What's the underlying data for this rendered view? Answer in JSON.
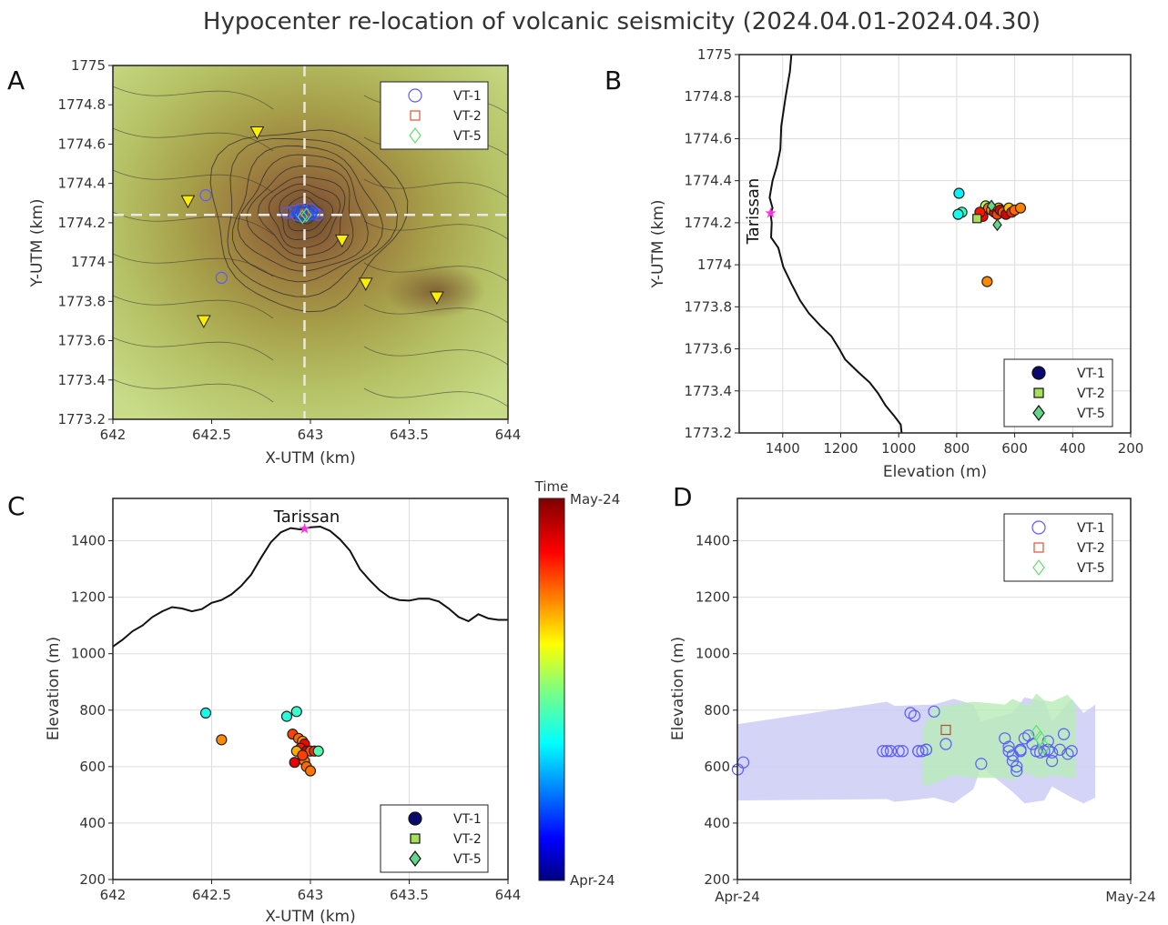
{
  "title": "Hypocenter re-location of volcanic seismicity (2024.04.01-2024.04.30)",
  "colors": {
    "vt1_open": "#5a5aff",
    "vt2_open": "#e0503a",
    "vt5_open": "#63e06b",
    "vt1_fill": "#0a0a6e",
    "vt2_fill": "#a6e05a",
    "vt5_fill": "#63d68a",
    "station": "#ffee00",
    "summit": "#ff33dd",
    "band_vt1": "#c9c9f5",
    "band_vt5": "#b8ebb8"
  },
  "colorbar": {
    "title": "Time",
    "top_label": "May-24",
    "bottom_label": "Apr-24"
  },
  "chart_data": [
    {
      "panel": "A",
      "type": "scatter",
      "background": "shaded relief topographic map with contour lines",
      "xlabel": "X-UTM (km)",
      "ylabel": "Y-UTM (km)",
      "xlim": [
        642,
        644
      ],
      "ylim": [
        1773.2,
        1775
      ],
      "xticks": [
        "642",
        "642.5",
        "643",
        "643.5",
        "644"
      ],
      "yticks": [
        "1773.2",
        "1773.4",
        "1773.6",
        "1773.8",
        "1774",
        "1774.2",
        "1774.4",
        "1774.6",
        "1774.8",
        "1775"
      ],
      "crosshair": {
        "x": 642.97,
        "y": 1774.24
      },
      "legend": [
        "VT-1",
        "VT-2",
        "VT-5"
      ],
      "stations": [
        [
          642.73,
          1774.66
        ],
        [
          642.38,
          1774.31
        ],
        [
          643.16,
          1774.11
        ],
        [
          643.28,
          1773.89
        ],
        [
          643.64,
          1773.82
        ],
        [
          642.46,
          1773.7
        ]
      ],
      "series": [
        {
          "name": "VT-1",
          "x": [
            642.47,
            642.55,
            642.88,
            642.91,
            642.93,
            642.95,
            642.96,
            642.97,
            642.98,
            642.99,
            643.0,
            643.02,
            643.04
          ],
          "y": [
            1774.34,
            1773.92,
            1774.25,
            1774.26,
            1774.24,
            1774.27,
            1774.23,
            1774.26,
            1774.25,
            1774.24,
            1774.27,
            1774.25,
            1774.24
          ]
        },
        {
          "name": "VT-2",
          "x": [
            642.97
          ],
          "y": [
            1774.25
          ]
        },
        {
          "name": "VT-5",
          "x": [
            642.96,
            642.98
          ],
          "y": [
            1774.23,
            1774.24
          ]
        }
      ]
    },
    {
      "panel": "B",
      "type": "scatter",
      "xlabel": "Elevation (m)",
      "ylabel": "Y-UTM (km)",
      "xlim": [
        1550,
        200
      ],
      "ylim": [
        1773.2,
        1775
      ],
      "xticks": [
        "1400",
        "1200",
        "1000",
        "800",
        "600",
        "400",
        "200"
      ],
      "yticks": [
        "1773.2",
        "1773.4",
        "1773.6",
        "1773.8",
        "1774",
        "1774.2",
        "1774.4",
        "1774.6",
        "1774.8",
        "1775"
      ],
      "annotation": "Tarissan",
      "summit": {
        "elev": 1442,
        "y": 1774.245
      },
      "legend": [
        "VT-1",
        "VT-2",
        "VT-5"
      ],
      "profile": [
        [
          1370,
          1775.0
        ],
        [
          1375,
          1774.92
        ],
        [
          1390,
          1774.8
        ],
        [
          1405,
          1774.66
        ],
        [
          1408,
          1774.55
        ],
        [
          1420,
          1774.47
        ],
        [
          1435,
          1774.4
        ],
        [
          1445,
          1774.32
        ],
        [
          1435,
          1774.27
        ],
        [
          1442,
          1774.245
        ],
        [
          1438,
          1774.2
        ],
        [
          1440,
          1774.13
        ],
        [
          1415,
          1774.08
        ],
        [
          1398,
          1773.99
        ],
        [
          1370,
          1773.91
        ],
        [
          1340,
          1773.83
        ],
        [
          1310,
          1773.77
        ],
        [
          1270,
          1773.71
        ],
        [
          1232,
          1773.66
        ],
        [
          1205,
          1773.6
        ],
        [
          1185,
          1773.55
        ],
        [
          1140,
          1773.49
        ],
        [
          1100,
          1773.44
        ],
        [
          1072,
          1773.39
        ],
        [
          1045,
          1773.33
        ],
        [
          1015,
          1773.28
        ],
        [
          993,
          1773.24
        ],
        [
          990,
          1773.2
        ]
      ],
      "points": [
        {
          "elev": 792,
          "y": 1774.34,
          "t": 0.35
        },
        {
          "elev": 782,
          "y": 1774.25,
          "t": 0.42
        },
        {
          "elev": 795,
          "y": 1774.24,
          "t": 0.38
        },
        {
          "elev": 700,
          "y": 1774.28,
          "t": 0.55
        },
        {
          "elev": 690,
          "y": 1774.27,
          "t": 0.75
        },
        {
          "elev": 680,
          "y": 1774.26,
          "t": 0.72
        },
        {
          "elev": 670,
          "y": 1774.25,
          "t": 0.85
        },
        {
          "elev": 660,
          "y": 1774.24,
          "t": 0.8
        },
        {
          "elev": 655,
          "y": 1774.27,
          "t": 0.7
        },
        {
          "elev": 650,
          "y": 1774.26,
          "t": 0.88
        },
        {
          "elev": 640,
          "y": 1774.25,
          "t": 0.78
        },
        {
          "elev": 630,
          "y": 1774.24,
          "t": 0.9
        },
        {
          "elev": 620,
          "y": 1774.27,
          "t": 0.68
        },
        {
          "elev": 610,
          "y": 1774.25,
          "t": 0.82
        },
        {
          "elev": 600,
          "y": 1774.26,
          "t": 0.76
        },
        {
          "elev": 580,
          "y": 1774.27,
          "t": 0.74
        },
        {
          "elev": 710,
          "y": 1774.23,
          "t": 0.86
        },
        {
          "elev": 720,
          "y": 1774.25,
          "t": 0.84
        },
        {
          "elev": 695,
          "y": 1773.92,
          "t": 0.73
        }
      ],
      "vt2_points": [
        {
          "elev": 730,
          "y": 1774.22
        }
      ],
      "vt5_points": [
        {
          "elev": 660,
          "y": 1774.19
        },
        {
          "elev": 680,
          "y": 1774.28
        }
      ]
    },
    {
      "panel": "C",
      "type": "scatter",
      "xlabel": "X-UTM (km)",
      "ylabel": "Elevation (m)",
      "xlim": [
        642,
        644
      ],
      "ylim": [
        200,
        1550
      ],
      "xticks": [
        "642",
        "642.5",
        "643",
        "643.5",
        "644"
      ],
      "yticks": [
        "200",
        "400",
        "600",
        "800",
        "1000",
        "1200",
        "1400"
      ],
      "annotation": "Tarissan",
      "summit": {
        "x": 642.97,
        "elev": 1442
      },
      "legend": [
        "VT-1",
        "VT-2",
        "VT-5"
      ],
      "profile": [
        [
          642.0,
          1025
        ],
        [
          642.05,
          1050
        ],
        [
          642.1,
          1080
        ],
        [
          642.15,
          1100
        ],
        [
          642.2,
          1130
        ],
        [
          642.25,
          1150
        ],
        [
          642.3,
          1165
        ],
        [
          642.35,
          1160
        ],
        [
          642.4,
          1150
        ],
        [
          642.45,
          1158
        ],
        [
          642.5,
          1180
        ],
        [
          642.55,
          1190
        ],
        [
          642.6,
          1210
        ],
        [
          642.65,
          1240
        ],
        [
          642.7,
          1280
        ],
        [
          642.75,
          1340
        ],
        [
          642.8,
          1395
        ],
        [
          642.85,
          1430
        ],
        [
          642.9,
          1445
        ],
        [
          642.95,
          1440
        ],
        [
          643.0,
          1448
        ],
        [
          643.05,
          1450
        ],
        [
          643.1,
          1435
        ],
        [
          643.15,
          1405
        ],
        [
          643.2,
          1365
        ],
        [
          643.25,
          1300
        ],
        [
          643.3,
          1260
        ],
        [
          643.35,
          1225
        ],
        [
          643.4,
          1200
        ],
        [
          643.45,
          1190
        ],
        [
          643.5,
          1188
        ],
        [
          643.55,
          1195
        ],
        [
          643.6,
          1195
        ],
        [
          643.65,
          1185
        ],
        [
          643.7,
          1160
        ],
        [
          643.75,
          1130
        ],
        [
          643.8,
          1115
        ],
        [
          643.85,
          1140
        ],
        [
          643.9,
          1125
        ],
        [
          643.95,
          1120
        ],
        [
          644.0,
          1120
        ]
      ],
      "points": [
        {
          "x": 642.47,
          "elev": 790,
          "t": 0.38
        },
        {
          "x": 642.55,
          "elev": 695,
          "t": 0.73
        },
        {
          "x": 642.88,
          "elev": 778,
          "t": 0.4
        },
        {
          "x": 642.93,
          "elev": 795,
          "t": 0.42
        },
        {
          "x": 642.91,
          "elev": 715,
          "t": 0.8
        },
        {
          "x": 642.94,
          "elev": 700,
          "t": 0.76
        },
        {
          "x": 642.96,
          "elev": 690,
          "t": 0.72
        },
        {
          "x": 642.97,
          "elev": 680,
          "t": 0.86
        },
        {
          "x": 642.95,
          "elev": 665,
          "t": 0.84
        },
        {
          "x": 642.98,
          "elev": 655,
          "t": 0.9
        },
        {
          "x": 643.0,
          "elev": 655,
          "t": 0.78
        },
        {
          "x": 643.02,
          "elev": 655,
          "t": 0.82
        },
        {
          "x": 642.93,
          "elev": 655,
          "t": 0.7
        },
        {
          "x": 642.92,
          "elev": 615,
          "t": 0.88
        },
        {
          "x": 642.97,
          "elev": 620,
          "t": 0.74
        },
        {
          "x": 642.98,
          "elev": 600,
          "t": 0.76
        },
        {
          "x": 643.0,
          "elev": 585,
          "t": 0.75
        },
        {
          "x": 642.96,
          "elev": 640,
          "t": 0.8
        },
        {
          "x": 643.04,
          "elev": 655,
          "t": 0.45
        }
      ]
    },
    {
      "panel": "D",
      "type": "scatter",
      "xlabel": "",
      "ylabel": "Elevation (m)",
      "xlim": [
        "Apr-24",
        "May-24"
      ],
      "ylim": [
        200,
        1550
      ],
      "xticks": [
        "Apr-24",
        "May-24"
      ],
      "yticks": [
        "200",
        "400",
        "600",
        "800",
        "1000",
        "1200",
        "1400"
      ],
      "legend": [
        "VT-1",
        "VT-2",
        "VT-5"
      ],
      "uncertainty_bands": [
        {
          "name": "VT-1",
          "x": [
            0.0,
            0.38,
            0.4,
            0.5,
            0.55,
            0.6,
            0.62,
            0.7,
            0.73,
            0.78,
            0.8,
            0.85,
            0.88,
            0.91
          ],
          "upper": [
            750,
            830,
            815,
            820,
            840,
            820,
            760,
            790,
            845,
            830,
            760,
            840,
            790,
            820
          ],
          "lower": [
            480,
            485,
            475,
            490,
            470,
            520,
            600,
            510,
            470,
            480,
            530,
            490,
            470,
            490
          ]
        },
        {
          "name": "VT-5",
          "x": [
            0.47,
            0.5,
            0.55,
            0.6,
            0.68,
            0.7,
            0.74,
            0.76,
            0.78,
            0.8,
            0.84,
            0.86
          ],
          "upper": [
            730,
            810,
            820,
            830,
            820,
            840,
            815,
            860,
            835,
            830,
            855,
            820
          ],
          "lower": [
            530,
            540,
            570,
            560,
            560,
            550,
            580,
            560,
            560,
            570,
            560,
            560
          ]
        }
      ],
      "series": [
        {
          "name": "VT-1",
          "t": [
            0.001,
            0.015,
            0.37,
            0.38,
            0.39,
            0.41,
            0.42,
            0.44,
            0.45,
            0.46,
            0.46,
            0.47,
            0.48,
            0.48,
            0.5,
            0.53,
            0.62,
            0.68,
            0.69,
            0.69,
            0.7,
            0.7,
            0.71,
            0.71,
            0.72,
            0.72,
            0.73,
            0.74,
            0.75,
            0.76,
            0.77,
            0.78,
            0.79,
            0.79,
            0.8,
            0.8,
            0.82,
            0.83,
            0.84,
            0.85
          ],
          "elev": [
            590,
            615,
            655,
            655,
            655,
            655,
            655,
            790,
            780,
            655,
            655,
            655,
            660,
            660,
            795,
            680,
            610,
            700,
            670,
            655,
            640,
            620,
            600,
            585,
            655,
            660,
            700,
            710,
            680,
            655,
            650,
            655,
            690,
            660,
            620,
            650,
            660,
            715,
            645,
            655
          ]
        },
        {
          "name": "VT-2",
          "t": [
            0.53
          ],
          "elev": [
            730
          ]
        },
        {
          "name": "VT-5",
          "t": [
            0.76,
            0.77,
            0.78
          ],
          "elev": [
            720,
            700,
            670
          ]
        }
      ]
    }
  ],
  "map_contours_km": [
    0.05,
    0.09,
    0.13,
    0.17,
    0.21,
    0.26,
    0.31,
    0.36,
    0.42,
    0.48
  ]
}
